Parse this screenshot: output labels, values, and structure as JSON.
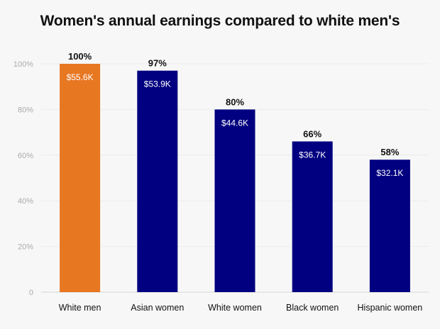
{
  "chart_data": {
    "type": "bar",
    "title": "Women's annual earnings compared to white men's",
    "xlabel": "",
    "ylabel": "",
    "ylim": [
      0,
      100
    ],
    "yticks": [
      "0",
      "20%",
      "40%",
      "60%",
      "80%",
      "100%"
    ],
    "ytick_values": [
      0,
      20,
      40,
      60,
      80,
      100
    ],
    "grid": true,
    "categories": [
      "White men",
      "Asian women",
      "White women",
      "Black women",
      "Hispanic women"
    ],
    "values": [
      100,
      97,
      80,
      66,
      58
    ],
    "value_labels": [
      "100%",
      "97%",
      "80%",
      "66%",
      "58%"
    ],
    "earnings_labels": [
      "$55.6K",
      "$53.9K",
      "$44.6K",
      "$36.7K",
      "$32.1K"
    ],
    "colors": [
      "#e87722",
      "#000080",
      "#000080",
      "#000080",
      "#000080"
    ]
  }
}
